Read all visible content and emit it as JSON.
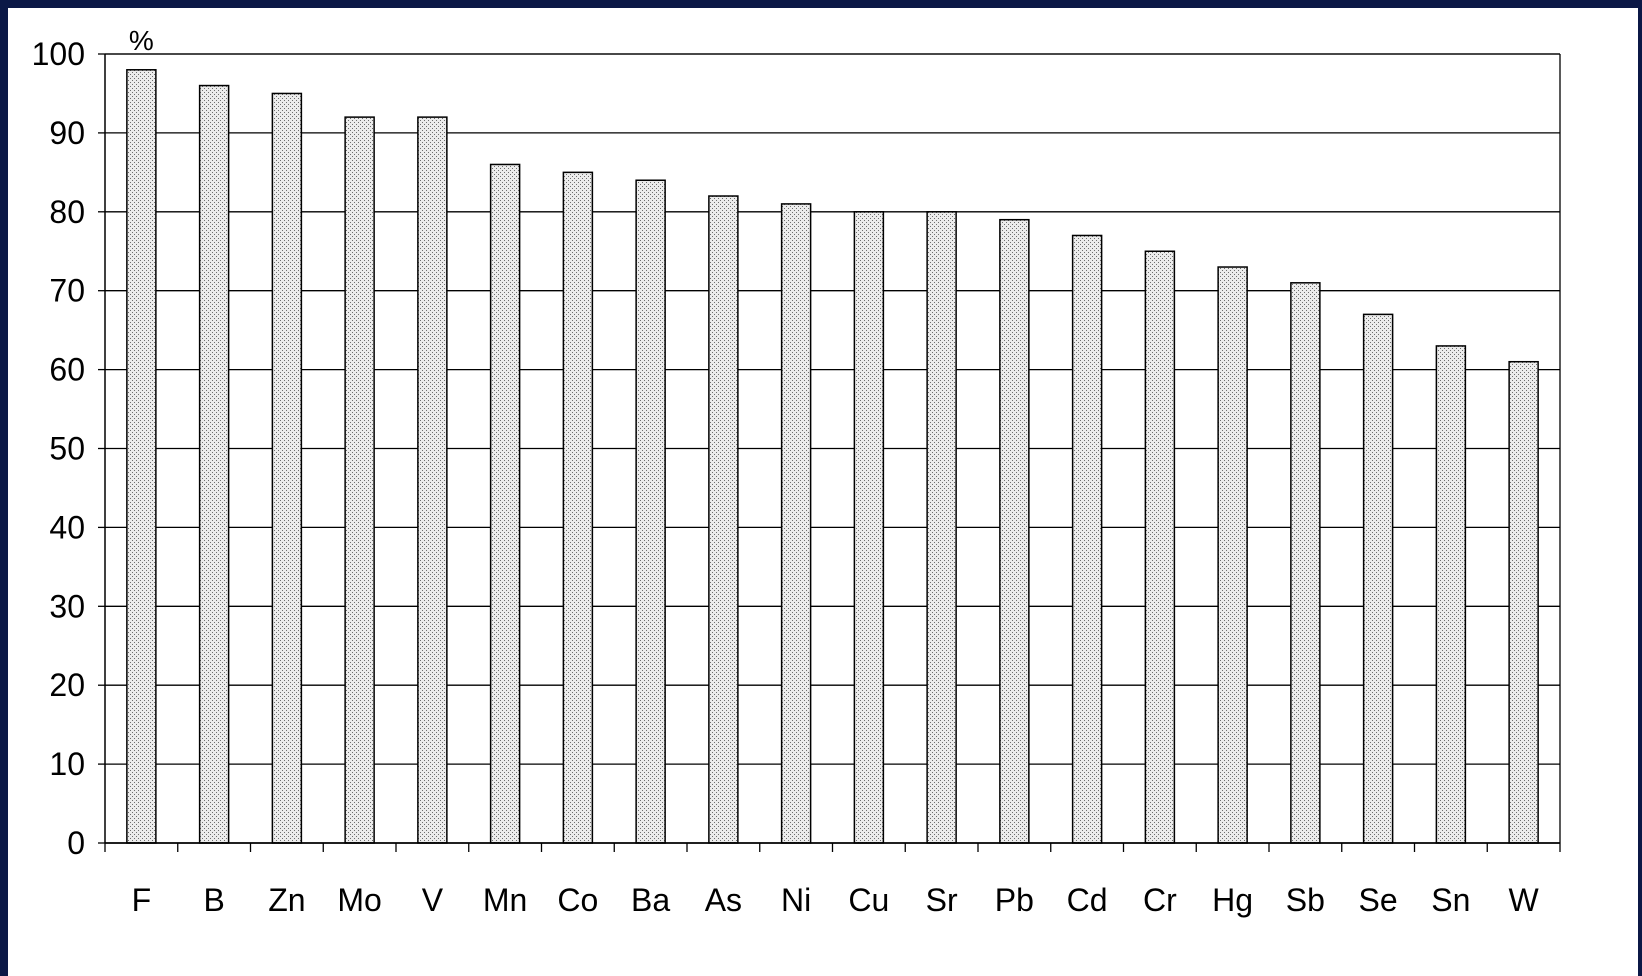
{
  "chart_data": {
    "type": "bar",
    "ylabel": "%",
    "ylim": [
      0,
      100
    ],
    "yticks": [
      0,
      10,
      20,
      30,
      40,
      50,
      60,
      70,
      80,
      90,
      100
    ],
    "grid": true,
    "bar_fill": "#d6d6d6",
    "categories": [
      "F",
      "B",
      "Zn",
      "Mo",
      "V",
      "Mn",
      "Co",
      "Ba",
      "As",
      "Ni",
      "Cu",
      "Sr",
      "Pb",
      "Cd",
      "Cr",
      "Hg",
      "Sb",
      "Se",
      "Sn",
      "W"
    ],
    "values": [
      98,
      96,
      95,
      92,
      92,
      86,
      85,
      84,
      82,
      81,
      80,
      80,
      79,
      77,
      75,
      73,
      71,
      67,
      63,
      61
    ]
  }
}
